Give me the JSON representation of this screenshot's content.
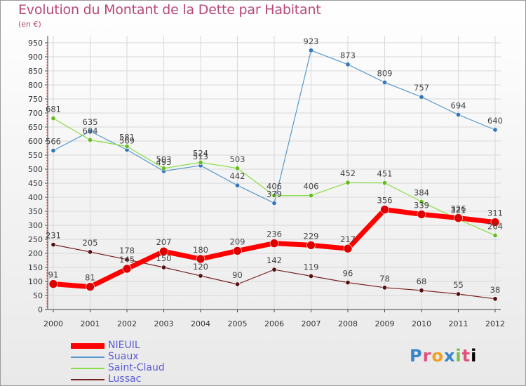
{
  "title": "Evolution du Montant de la Dette par Habitant",
  "unit": "(en €)",
  "logo": "Proxiti",
  "chart_data": {
    "type": "line",
    "x": [
      "2000",
      "2001",
      "2002",
      "2003",
      "2004",
      "2005",
      "2006",
      "2007",
      "2008",
      "2009",
      "2010",
      "2011",
      "2012"
    ],
    "ylim": [
      0,
      950
    ],
    "yticks": [
      0,
      50,
      100,
      150,
      200,
      250,
      300,
      350,
      400,
      450,
      500,
      550,
      600,
      650,
      700,
      750,
      800,
      850,
      900,
      950
    ],
    "grid": true,
    "legend_position": "bottom-left",
    "series": [
      {
        "name": "NIEUIL",
        "color": "#ff0000",
        "values": [
          91,
          81,
          145,
          207,
          180,
          209,
          236,
          229,
          217,
          356,
          339,
          326,
          311
        ]
      },
      {
        "name": "Suaux",
        "color": "#5599cc",
        "values": [
          566,
          635,
          569,
          493,
          513,
          442,
          379,
          923,
          873,
          809,
          757,
          694,
          640
        ]
      },
      {
        "name": "Saint-Claud",
        "color": "#88dd44",
        "values": [
          681,
          604,
          581,
          503,
          524,
          503,
          406,
          406,
          452,
          451,
          384,
          321,
          264
        ]
      },
      {
        "name": "Lussac",
        "color": "#772222",
        "values": [
          231,
          205,
          178,
          150,
          120,
          90,
          142,
          119,
          96,
          78,
          68,
          55,
          38
        ]
      }
    ]
  }
}
